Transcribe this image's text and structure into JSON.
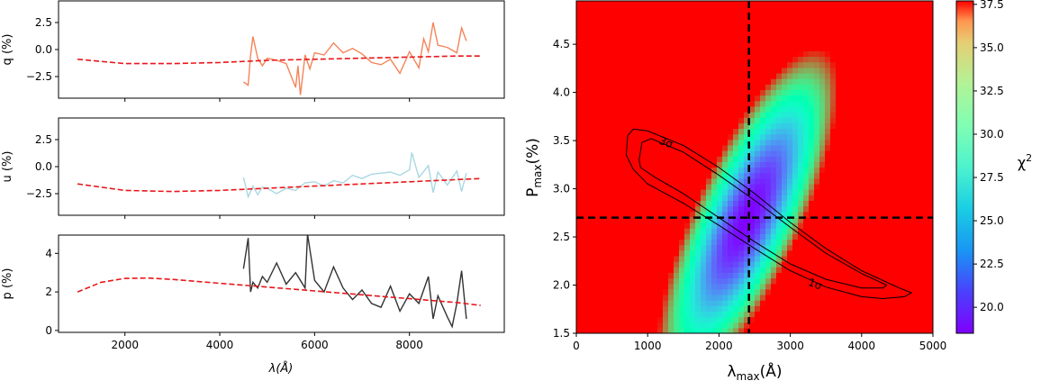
{
  "chart_data": [
    {
      "type": "line",
      "ylabel": "q (%)",
      "ylim": [
        -4.5,
        4.5
      ],
      "xlim": [
        600,
        10000
      ],
      "yticks": [
        -2.5,
        0.0,
        2.5
      ],
      "ytick_labels": [
        "−2.5",
        "0.0",
        "2.5"
      ],
      "colors": {
        "data": "#f4845a",
        "model": "#e8161a"
      },
      "model": {
        "x": [
          1000,
          2000,
          3000,
          4000,
          5000,
          6000,
          7000,
          8000,
          9000,
          9500
        ],
        "y": [
          -0.9,
          -1.3,
          -1.3,
          -1.2,
          -1.0,
          -0.9,
          -0.8,
          -0.7,
          -0.6,
          -0.6
        ]
      },
      "data": {
        "x": [
          4500,
          4600,
          4650,
          4700,
          4800,
          4900,
          5000,
          5200,
          5400,
          5600,
          5650,
          5700,
          5800,
          5900,
          6000,
          6200,
          6400,
          6600,
          6800,
          7000,
          7200,
          7400,
          7600,
          7800,
          8000,
          8200,
          8300,
          8400,
          8500,
          8600,
          8800,
          9000,
          9100,
          9200
        ],
        "y": [
          -3.0,
          -3.3,
          -0.5,
          1.2,
          -0.8,
          -1.5,
          -0.8,
          -1.0,
          -1.3,
          -3.5,
          -1.5,
          -4.2,
          -0.5,
          -1.8,
          -0.3,
          -0.5,
          0.6,
          -0.3,
          0.1,
          -0.4,
          -1.2,
          -1.4,
          -0.9,
          -2.2,
          -0.2,
          -1.7,
          1.0,
          -0.2,
          2.5,
          0.4,
          0.2,
          -0.3,
          2.0,
          0.8
        ]
      }
    },
    {
      "type": "line",
      "ylabel": "u (%)",
      "ylim": [
        -4.5,
        4.5
      ],
      "xlim": [
        600,
        10000
      ],
      "yticks": [
        -2.5,
        0.0,
        2.5
      ],
      "ytick_labels": [
        "−2.5",
        "0.0",
        "2.5"
      ],
      "colors": {
        "data": "#a8d8e2",
        "model": "#e8161a"
      },
      "model": {
        "x": [
          1000,
          2000,
          3000,
          4000,
          5000,
          6000,
          7000,
          8000,
          9000,
          9500
        ],
        "y": [
          -1.6,
          -2.2,
          -2.3,
          -2.2,
          -2.0,
          -1.8,
          -1.6,
          -1.4,
          -1.2,
          -1.1
        ]
      },
      "data": {
        "x": [
          4500,
          4600,
          4700,
          4800,
          4900,
          5000,
          5200,
          5400,
          5600,
          5800,
          6000,
          6200,
          6400,
          6600,
          6800,
          7000,
          7200,
          7400,
          7600,
          7800,
          8000,
          8050,
          8200,
          8400,
          8500,
          8600,
          8800,
          9000,
          9100,
          9200
        ],
        "y": [
          -1.0,
          -2.8,
          -1.8,
          -2.6,
          -1.9,
          -2.0,
          -2.5,
          -2.0,
          -2.2,
          -1.5,
          -1.4,
          -1.8,
          -1.3,
          -1.5,
          -0.8,
          -1.1,
          -0.7,
          -0.6,
          -0.5,
          -0.8,
          -0.3,
          1.3,
          -1.0,
          0.1,
          -2.4,
          -0.5,
          -1.7,
          -0.4,
          -2.3,
          -0.6
        ]
      }
    },
    {
      "type": "line",
      "ylabel": "p (%)",
      "xlabel": "λ(Å)",
      "ylim": [
        -0.1,
        4.95
      ],
      "xlim": [
        600,
        10000
      ],
      "xticks": [
        2000,
        4000,
        6000,
        8000
      ],
      "yticks": [
        0,
        2,
        4
      ],
      "ytick_labels": [
        "0",
        "2",
        "4"
      ],
      "colors": {
        "data": "#333333",
        "model": "#e8161a"
      },
      "model": {
        "x": [
          1000,
          1500,
          2000,
          2500,
          3000,
          4000,
          5000,
          6000,
          7000,
          8000,
          9000,
          9500
        ],
        "y": [
          2.0,
          2.5,
          2.7,
          2.72,
          2.65,
          2.45,
          2.25,
          2.05,
          1.85,
          1.65,
          1.45,
          1.3
        ]
      },
      "data": {
        "x": [
          4500,
          4600,
          4650,
          4700,
          4800,
          4900,
          5000,
          5200,
          5400,
          5600,
          5800,
          5850,
          6000,
          6200,
          6400,
          6600,
          6800,
          7000,
          7200,
          7400,
          7600,
          7800,
          8000,
          8200,
          8400,
          8500,
          8600,
          8800,
          8900,
          9000,
          9100,
          9200
        ],
        "y": [
          3.2,
          4.8,
          2.0,
          2.5,
          2.2,
          2.8,
          2.5,
          3.5,
          2.4,
          3.0,
          2.2,
          5.0,
          2.6,
          2.0,
          3.3,
          2.2,
          1.6,
          2.1,
          1.4,
          1.2,
          2.3,
          1.0,
          1.9,
          1.4,
          2.8,
          0.6,
          1.8,
          0.7,
          0.2,
          1.4,
          3.1,
          0.6
        ]
      }
    },
    {
      "type": "heatmap",
      "xlabel": "λmax(Å)",
      "ylabel": "Pmax(%)",
      "xlim": [
        0,
        5000
      ],
      "ylim": [
        1.5,
        4.95
      ],
      "xticks": [
        0,
        1000,
        2000,
        3000,
        4000,
        5000
      ],
      "yticks": [
        1.5,
        2.0,
        2.5,
        3.0,
        3.5,
        4.0,
        4.5
      ],
      "ytick_labels": [
        "1.5",
        "2.0",
        "2.5",
        "3.0",
        "3.5",
        "4.0",
        "4.5"
      ],
      "colorbar": {
        "label": "χ2",
        "range": [
          18.5,
          37.7
        ],
        "ticks": [
          20.0,
          22.5,
          25.0,
          27.5,
          30.0,
          32.5,
          35.0,
          37.5
        ]
      },
      "best_fit": {
        "lambda_max": 2420,
        "p_max": 2.7
      },
      "contours": [
        "1σ",
        "3σ"
      ]
    }
  ]
}
